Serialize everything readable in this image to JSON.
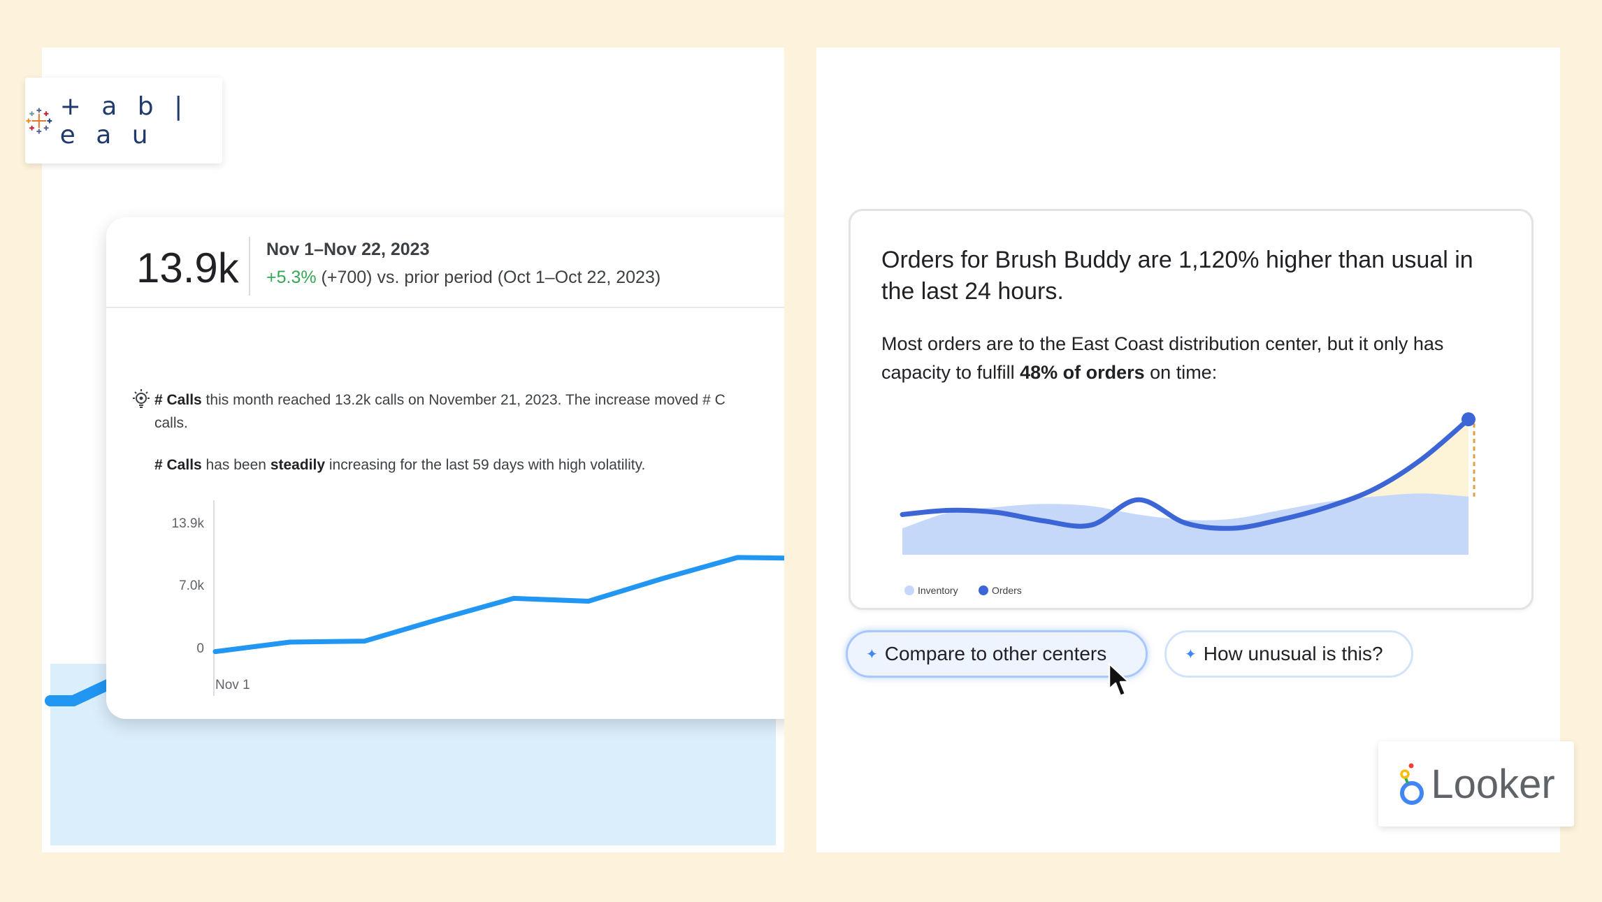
{
  "tableau": {
    "wordmark": "+ a b | e a u",
    "metric": {
      "value": "13.9k",
      "period": "Nov 1–Nov 22, 2023",
      "change": "+5.3%",
      "comparison": " (+700) vs. prior period (Oct 1–Oct 22, 2023)"
    },
    "insight": {
      "line1_bold": "# Calls",
      "line1_rest": " this month reached 13.2k calls on November 21, 2023. The increase moved # C",
      "line2": "calls.",
      "line3_bold1": "# Calls",
      "line3_mid": " has been ",
      "line3_bold2": "steadily",
      "line3_rest": " increasing for the last 59 days with high volatility."
    },
    "chart_data": {
      "type": "line",
      "y_tick_labels": [
        "13.9k",
        "7.0k",
        "0"
      ],
      "x_tick_labels": [
        "Nov 1"
      ],
      "ylim": [
        0,
        13900
      ],
      "x": [
        0,
        1,
        2,
        3,
        4,
        5,
        6,
        7,
        8
      ],
      "values": [
        400,
        1400,
        1500,
        3800,
        6000,
        5700,
        8100,
        10300,
        10200
      ],
      "color": "#2196f3"
    }
  },
  "looker": {
    "wordmark": "Looker",
    "insight": {
      "title": "Orders for Brush Buddy are 1,120% higher than usual in the last 24 hours.",
      "body_start": "Most orders are to the East Coast distribution center, but it only has capacity to fulfill ",
      "body_bold": "48% of orders",
      "body_end": " on time:"
    },
    "chart_data": {
      "type": "area",
      "x": [
        0,
        1,
        2,
        3,
        4,
        5,
        6,
        7,
        8,
        9,
        10,
        11,
        12
      ],
      "series": [
        {
          "name": "Inventory",
          "values": [
            25,
            40,
            45,
            48,
            46,
            38,
            33,
            34,
            42,
            50,
            55,
            58,
            55
          ],
          "color": "#c6d8fa"
        },
        {
          "name": "Orders",
          "values": [
            38,
            42,
            40,
            32,
            28,
            52,
            30,
            25,
            33,
            45,
            62,
            90,
            128
          ],
          "color": "#3c66d6"
        }
      ],
      "ylim": [
        0,
        140
      ],
      "legend": "bottom-left"
    },
    "chips": {
      "compare": "Compare to other centers",
      "unusual": "How unusual is this?",
      "sparkle": "✦"
    }
  }
}
